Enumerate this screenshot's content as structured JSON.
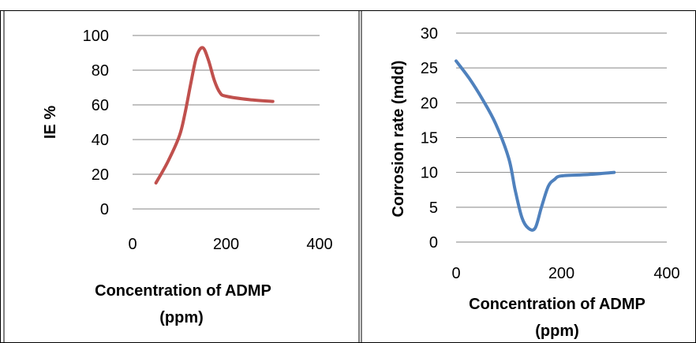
{
  "chart_data": [
    {
      "type": "line",
      "title": "",
      "xlabel_lines": [
        "Concentration of ADMP",
        "(ppm)"
      ],
      "ylabel": "IE %",
      "xlim": [
        0,
        400
      ],
      "ylim": [
        0,
        100
      ],
      "xticks": [
        "0",
        "200",
        "400"
      ],
      "yticks": [
        "0",
        "20",
        "40",
        "60",
        "80",
        "100"
      ],
      "grid": "horizontal",
      "legend": "none",
      "series_color": "#C0504D",
      "series": [
        {
          "x": [
            50,
            75,
            100,
            112,
            125,
            137,
            150,
            162,
            175,
            187,
            200,
            250,
            300
          ],
          "y": [
            15,
            27,
            42,
            55,
            73,
            88,
            93,
            86,
            74,
            67,
            65,
            63,
            62
          ]
        }
      ]
    },
    {
      "type": "line",
      "title": "",
      "xlabel_lines": [
        "Concentration of ADMP",
        "(ppm)"
      ],
      "ylabel": "Corrosion rate (mdd)",
      "xlim": [
        0,
        400
      ],
      "ylim": [
        0,
        30
      ],
      "xticks": [
        "0",
        "200",
        "400"
      ],
      "yticks": [
        "0",
        "5",
        "10",
        "15",
        "20",
        "25",
        "30"
      ],
      "grid": "horizontal",
      "legend": "none",
      "series_color": "#4F81BD",
      "series": [
        {
          "x": [
            0,
            25,
            50,
            75,
            100,
            112,
            125,
            137,
            150,
            162,
            175,
            187,
            200,
            250,
            300
          ],
          "y": [
            26,
            23.5,
            20.5,
            17,
            12,
            7.5,
            3.5,
            2,
            2,
            5,
            8,
            9,
            9.5,
            9.7,
            10
          ]
        }
      ]
    }
  ]
}
